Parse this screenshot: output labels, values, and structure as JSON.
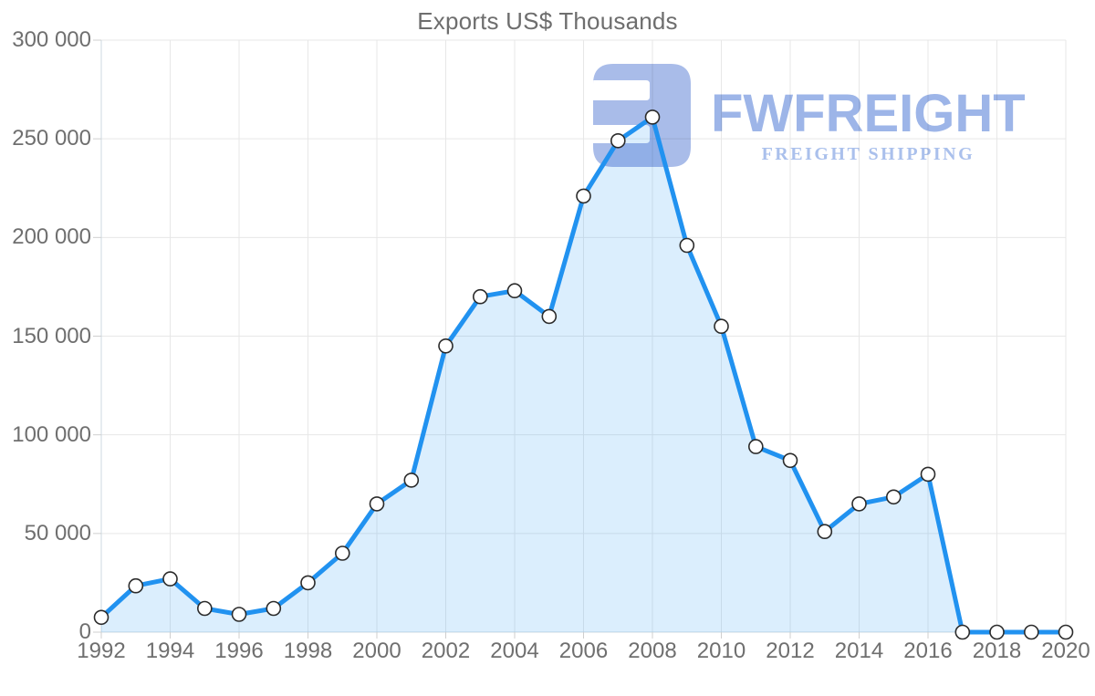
{
  "chart_data": {
    "type": "area",
    "title": "Exports US$ Thousands",
    "series_name": "Exports",
    "x": [
      1992,
      1993,
      1994,
      1995,
      1996,
      1997,
      1998,
      1999,
      2000,
      2001,
      2002,
      2003,
      2004,
      2005,
      2006,
      2007,
      2008,
      2009,
      2010,
      2011,
      2012,
      2013,
      2014,
      2015,
      2016,
      2017,
      2018,
      2019,
      2020
    ],
    "values": [
      7500,
      23500,
      27000,
      12000,
      9000,
      12000,
      25000,
      40000,
      65000,
      77000,
      145000,
      170000,
      173000,
      160000,
      221000,
      249000,
      261000,
      196000,
      155000,
      94000,
      87000,
      51000,
      65000,
      68500,
      80000,
      0,
      0,
      0,
      0
    ],
    "ylim": [
      0,
      300000
    ],
    "xlim": [
      1992,
      2020
    ],
    "ytick_values": [
      0,
      50000,
      100000,
      150000,
      200000,
      250000,
      300000
    ],
    "ytick_labels": [
      "0",
      "50 000",
      "100 000",
      "150 000",
      "200 000",
      "250 000",
      "300 000"
    ],
    "xtick_values": [
      1992,
      1994,
      1996,
      1998,
      2000,
      2002,
      2004,
      2006,
      2008,
      2010,
      2012,
      2014,
      2016,
      2018,
      2020
    ],
    "xtick_labels": [
      "1992",
      "1994",
      "1996",
      "1998",
      "2000",
      "2002",
      "2004",
      "2006",
      "2008",
      "2010",
      "2012",
      "2014",
      "2016",
      "2018",
      "2020"
    ],
    "grid": "on",
    "legend": "none",
    "marker_shape": "circle"
  },
  "colors": {
    "line": "#2192f0",
    "area_fill": "rgba(33,150,243,0.16)",
    "gridline": "#e7e7e7",
    "axis": "#ccd9e0",
    "tick": "#cfcfcf",
    "label_text": "#6f6f6f",
    "title_text": "#6e6e6e",
    "marker_fill": "#ffffff",
    "marker_stroke": "#2b2b2b",
    "watermark_icon": "#a9bce9",
    "watermark_brand": "#9db5e8",
    "watermark_tagline": "#aac0ec"
  },
  "watermark": {
    "brand": "FWFREIGHT",
    "tagline": "FREIGHT SHIPPING",
    "icon": "fwfreight-logo-icon"
  }
}
